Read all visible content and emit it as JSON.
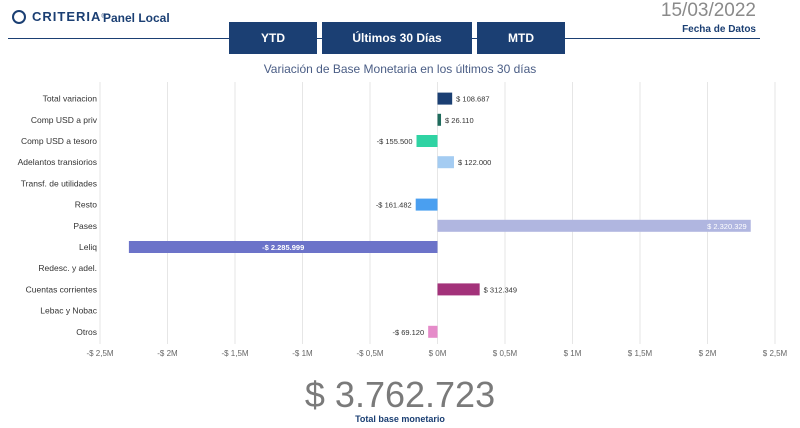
{
  "header": {
    "brand": "CRITERIA",
    "brand_reg": "®",
    "panel_title": "Panel Local",
    "tabs": [
      "YTD",
      "Últimos 30 Días",
      "MTD"
    ],
    "date": "15/03/2022",
    "date_label": "Fecha de Datos"
  },
  "summary": {
    "value": "$ 3.762.723",
    "label": "Total base monetario"
  },
  "chart_data": {
    "type": "bar",
    "orientation": "horizontal",
    "title": "Variación de Base Monetaria en los últimos 30 días",
    "categories": [
      "Total variacion",
      "Comp USD a priv",
      "Comp USD a tesoro",
      "Adelantos transiorios",
      "Transf. de utilidades",
      "Resto",
      "Pases",
      "Leliq",
      "Redesc. y adel.",
      "Cuentas corrientes",
      "Lebac y Nobac",
      "Otros"
    ],
    "values": [
      108687,
      26110,
      -155500,
      122000,
      null,
      -161482,
      2320329,
      -2285999,
      null,
      312349,
      null,
      -69120
    ],
    "data_labels": [
      "$ 108.687",
      "$ 26.110",
      "-$ 155.500",
      "$ 122.000",
      "",
      "-$ 161.482",
      "$ 2.320.329",
      "-$ 2.285.999",
      "",
      "$ 312.349",
      "",
      "-$ 69.120"
    ],
    "colors": [
      "#1b3f73",
      "#1f6b5c",
      "#2fd3a3",
      "#a4ccf2",
      "#cccccc",
      "#4a9ff0",
      "#b0b6e0",
      "#6c73c9",
      "#cccccc",
      "#a3327a",
      "#cccccc",
      "#e58bc9"
    ],
    "xlim": [
      -2500000,
      2500000
    ],
    "xticks": [
      -2500000,
      -2000000,
      -1500000,
      -1000000,
      -500000,
      0,
      500000,
      1000000,
      1500000,
      2000000,
      2500000
    ],
    "xtick_labels": [
      "-$ 2,5M",
      "-$ 2M",
      "-$ 1,5M",
      "-$ 1M",
      "-$ 0,5M",
      "$ 0M",
      "$ 0,5M",
      "$ 1M",
      "$ 1,5M",
      "$ 2M",
      "$ 2,5M"
    ],
    "grid": true
  }
}
